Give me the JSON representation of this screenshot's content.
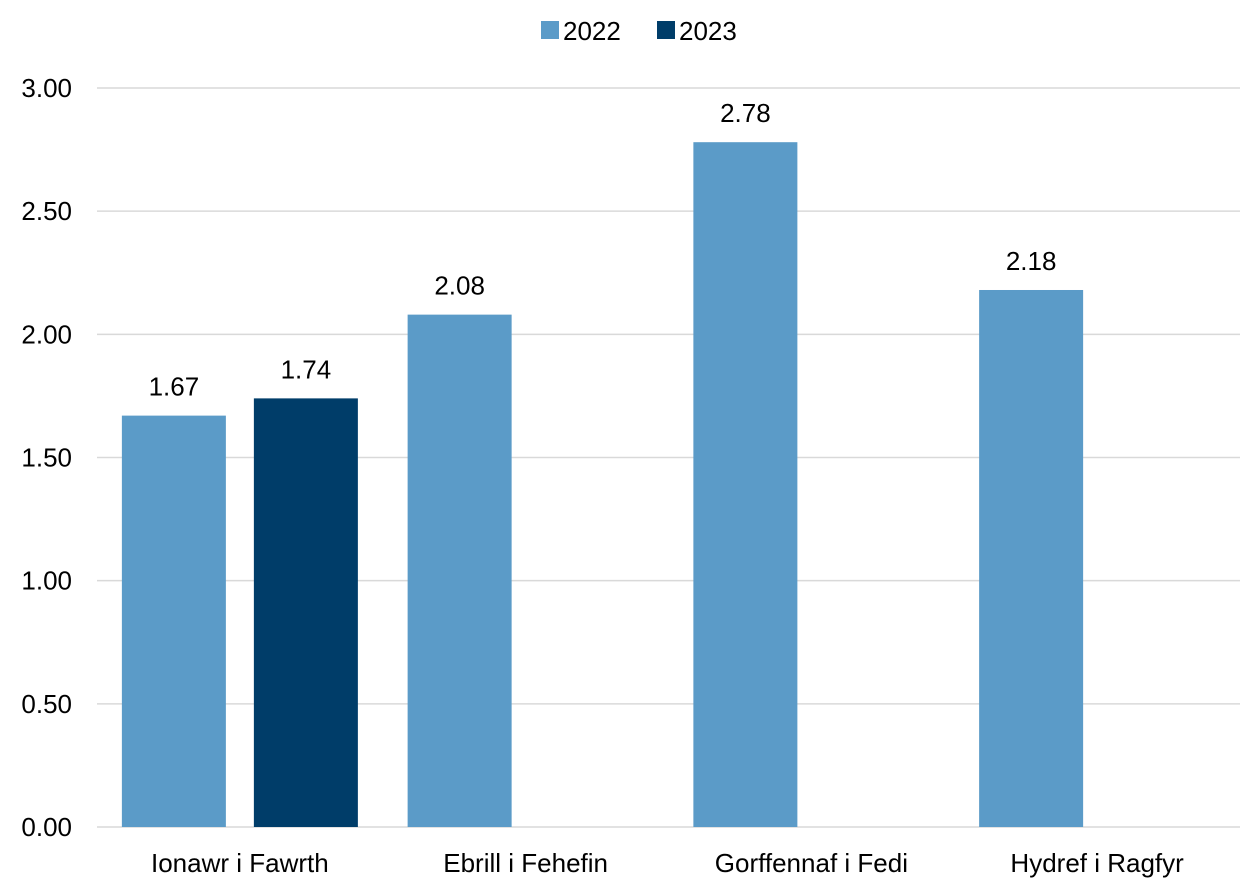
{
  "chart_data": {
    "type": "bar",
    "title": "",
    "xlabel": "",
    "ylabel": "",
    "categories": [
      "Ionawr i Fawrth",
      "Ebrill i Fehefin",
      "Gorffennaf i Fedi",
      "Hydref i Ragfyr"
    ],
    "series": [
      {
        "name": "2022",
        "color": "#5B9BC8",
        "values": [
          1.67,
          2.08,
          2.78,
          2.18
        ],
        "labels": [
          "1.67",
          "2.08",
          "2.78",
          "2.18"
        ]
      },
      {
        "name": "2023",
        "color": "#003D69",
        "values": [
          1.74,
          null,
          null,
          null
        ],
        "labels": [
          "1.74",
          "",
          "",
          ""
        ]
      }
    ],
    "ylim": [
      0,
      3
    ],
    "yticks": [
      0,
      0.5,
      1,
      1.5,
      2,
      2.5,
      3
    ],
    "ytick_labels": [
      "0.00",
      "0.50",
      "1.00",
      "1.50",
      "2.00",
      "2.50",
      "3.00"
    ],
    "grid": true,
    "legend_position": "top-center",
    "gridline_color": "#D9D9D9"
  }
}
